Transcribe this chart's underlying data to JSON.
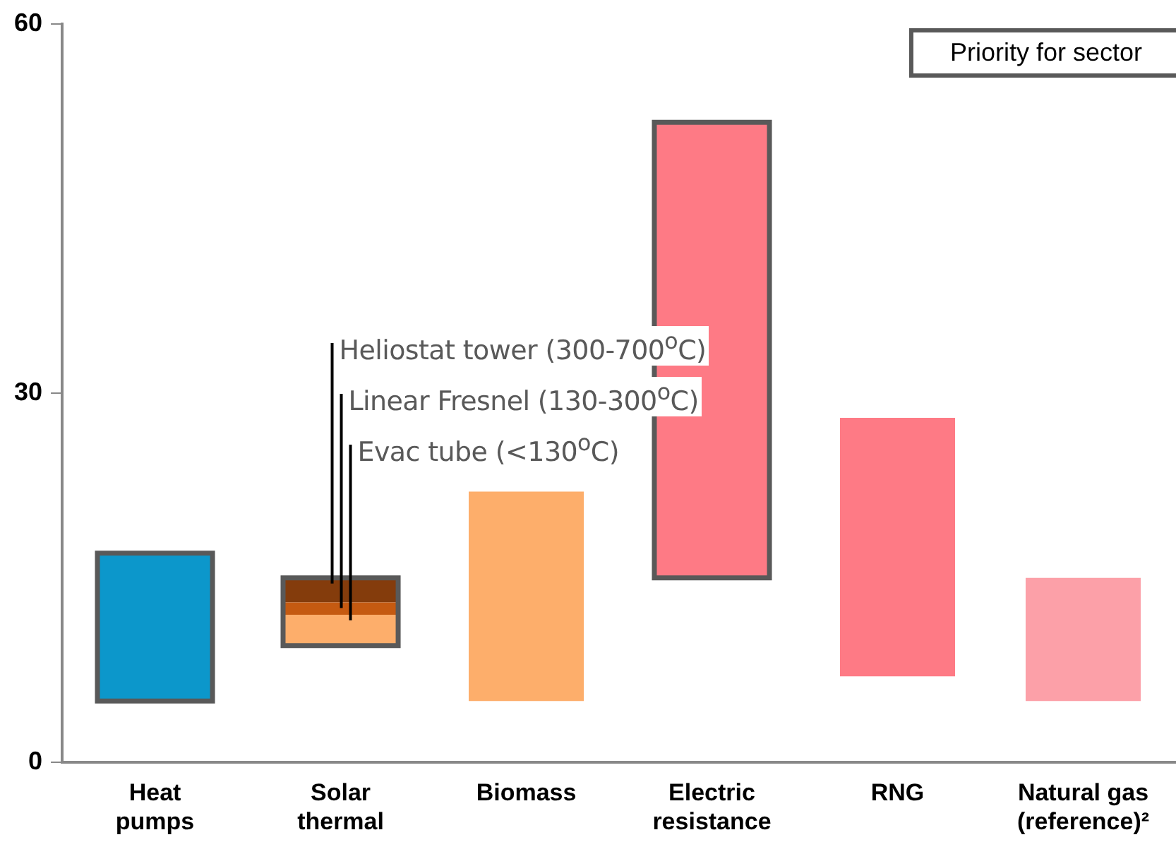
{
  "chart_data": {
    "type": "bar",
    "categories": [
      "Heat pumps",
      "Solar thermal",
      "Biomass",
      "Electric resistance",
      "RNG",
      "Natural gas (reference)²"
    ],
    "series": [
      {
        "color": "#595959",
        "colors": [
          "#0c97cb",
          "#fdae6b",
          null,
          "#fe7a85",
          null,
          null
        ],
        "base": [
          5,
          9.5,
          null,
          15,
          null,
          null
        ],
        "values": [
          12,
          2.5,
          null,
          37,
          null,
          null
        ]
      },
      {
        "color": "#c55a11",
        "base": [
          null,
          12,
          null,
          null,
          null,
          null
        ],
        "values": [
          null,
          1,
          null,
          null,
          null,
          null
        ]
      },
      {
        "color": "#843c0c",
        "base": [
          null,
          13,
          null,
          null,
          null,
          null
        ],
        "values": [
          null,
          2,
          null,
          null,
          null,
          null
        ]
      },
      {
        "colors": [
          null,
          null,
          "#fdae6b",
          null,
          "#fe7a85",
          "#fca0a8"
        ],
        "base": [
          null,
          null,
          5,
          null,
          7,
          5
        ],
        "values": [
          null,
          null,
          17,
          null,
          21,
          10
        ]
      }
    ],
    "ylim": [
      0,
      60
    ],
    "yticks": [
      0,
      30,
      60
    ],
    "grid": false,
    "annotations": [
      "Priority for sector",
      {
        "text": "Heliostat tower (300-700$^{o}$C)",
        "x": "Solar thermal",
        "y": 15
      },
      {
        "text": "Linear Fresnel (130-300$^{o}$C)",
        "x": "Solar thermal",
        "y": 13
      },
      {
        "text": "Evac tube (<130$^{o}$C)",
        "x": "Solar thermal",
        "y": 12
      }
    ]
  }
}
